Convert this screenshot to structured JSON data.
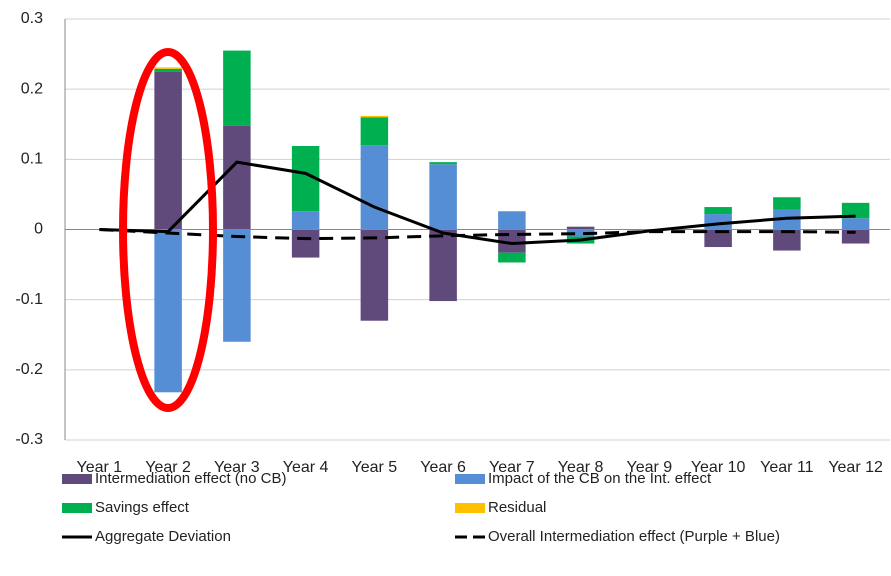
{
  "chart_data": {
    "type": "stacked-bar-line",
    "categories": [
      "Year 1",
      "Year 2",
      "Year 3",
      "Year 4",
      "Year 5",
      "Year 6",
      "Year 7",
      "Year 8",
      "Year 9",
      "Year 10",
      "Year 11",
      "Year 12"
    ],
    "series": [
      {
        "name": "Intermediation effect (no CB)",
        "kind": "bar",
        "color": "#604a7b",
        "values": [
          0,
          0.225,
          0.148,
          -0.04,
          -0.13,
          -0.102,
          -0.033,
          0.004,
          0,
          -0.025,
          -0.03,
          -0.02
        ]
      },
      {
        "name": "Impact of the CB on the Int. effect",
        "kind": "bar",
        "color": "#558ed5",
        "values": [
          0,
          -0.232,
          -0.16,
          0.026,
          0.12,
          0.093,
          0.026,
          -0.01,
          0,
          0.022,
          0.028,
          0.016
        ]
      },
      {
        "name": "Savings effect",
        "kind": "bar",
        "color": "#00b050",
        "values": [
          0,
          0.004,
          0.107,
          0.093,
          0.04,
          0.003,
          -0.014,
          -0.01,
          0,
          0.01,
          0.018,
          0.022
        ]
      },
      {
        "name": "Residual",
        "kind": "bar",
        "color": "#ffc000",
        "values": [
          0,
          0.002,
          0,
          0,
          0.002,
          0,
          0,
          0,
          0,
          0,
          0,
          0
        ]
      },
      {
        "name": "Aggregate Deviation",
        "kind": "line",
        "color": "#000000",
        "dashed": false,
        "values": [
          0,
          -0.003,
          0.096,
          0.08,
          0.032,
          -0.005,
          -0.02,
          -0.015,
          -0.002,
          0.008,
          0.016,
          0.019
        ]
      },
      {
        "name": "Overall Intermediation effect (Purple + Blue)",
        "kind": "line",
        "color": "#000000",
        "dashed": true,
        "values": [
          0,
          -0.005,
          -0.01,
          -0.013,
          -0.012,
          -0.009,
          -0.007,
          -0.006,
          -0.003,
          -0.003,
          -0.003,
          -0.004
        ]
      }
    ],
    "ylim": [
      -0.3,
      0.3
    ],
    "yticks": [
      -0.3,
      -0.2,
      -0.1,
      0,
      0.1,
      0.2,
      0.3
    ],
    "grid": true
  }
}
